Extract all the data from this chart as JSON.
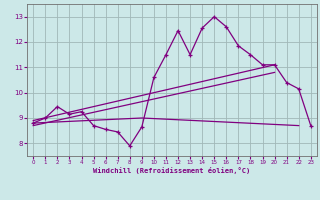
{
  "title": "",
  "xlabel": "Windchill (Refroidissement éolien,°C)",
  "ylabel": "",
  "bg_color": "#cce8e8",
  "line_color": "#800080",
  "grid_color": "#a0b8b8",
  "xlim": [
    -0.5,
    23.5
  ],
  "ylim": [
    7.5,
    13.5
  ],
  "yticks": [
    8,
    9,
    10,
    11,
    12,
    13
  ],
  "xticks": [
    0,
    1,
    2,
    3,
    4,
    5,
    6,
    7,
    8,
    9,
    10,
    11,
    12,
    13,
    14,
    15,
    16,
    17,
    18,
    19,
    20,
    21,
    22,
    23
  ],
  "line1_x": [
    0,
    1,
    2,
    3,
    4,
    5,
    6,
    7,
    8,
    9,
    10,
    11,
    12,
    13,
    14,
    15,
    16,
    17,
    18,
    19,
    20,
    21,
    22,
    23
  ],
  "line1_y": [
    8.8,
    9.0,
    9.45,
    9.15,
    9.25,
    8.7,
    8.55,
    8.45,
    7.9,
    8.65,
    10.6,
    11.5,
    12.45,
    11.5,
    12.55,
    13.0,
    12.6,
    11.85,
    11.5,
    11.1,
    11.1,
    10.4,
    10.15,
    8.7
  ],
  "line2_x": [
    0,
    9,
    22
  ],
  "line2_y": [
    8.8,
    9.0,
    8.7
  ],
  "line3_x": [
    0,
    20
  ],
  "line3_y": [
    8.9,
    11.1
  ],
  "line4_x": [
    0,
    20
  ],
  "line4_y": [
    8.7,
    10.8
  ],
  "marker": "+"
}
